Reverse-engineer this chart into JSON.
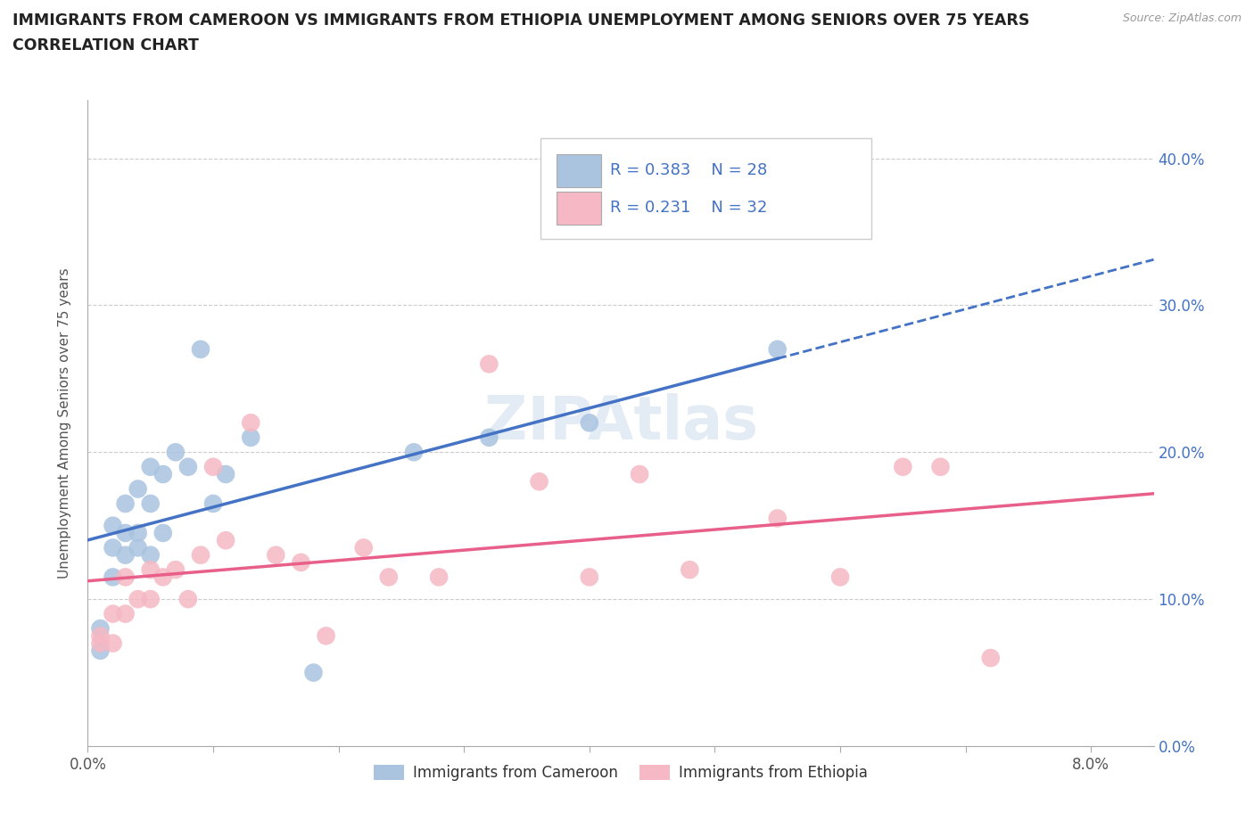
{
  "title_line1": "IMMIGRANTS FROM CAMEROON VS IMMIGRANTS FROM ETHIOPIA UNEMPLOYMENT AMONG SENIORS OVER 75 YEARS",
  "title_line2": "CORRELATION CHART",
  "source": "Source: ZipAtlas.com",
  "ylabel": "Unemployment Among Seniors over 75 years",
  "xlim": [
    0.0,
    0.085
  ],
  "ylim": [
    0.0,
    0.44
  ],
  "xticks": [
    0.0,
    0.01,
    0.02,
    0.03,
    0.04,
    0.05,
    0.06,
    0.07,
    0.08
  ],
  "xticklabels_show": {
    "0.0": "0.0%",
    "0.08": "8.0%"
  },
  "yticks": [
    0.0,
    0.1,
    0.2,
    0.3,
    0.4
  ],
  "yticklabels": [
    "0.0%",
    "10.0%",
    "20.0%",
    "30.0%",
    "40.0%"
  ],
  "cameroon_color": "#aac4e0",
  "ethiopia_color": "#f5b8c4",
  "cameroon_trend_color": "#4472c4",
  "ethiopia_trend_color": "#e8608a",
  "right_axis_color": "#4472c4",
  "watermark_color": "#c8d8ea",
  "cameroon_x": [
    0.001,
    0.001,
    0.002,
    0.002,
    0.002,
    0.003,
    0.003,
    0.003,
    0.004,
    0.004,
    0.004,
    0.005,
    0.005,
    0.005,
    0.006,
    0.006,
    0.007,
    0.008,
    0.009,
    0.01,
    0.011,
    0.013,
    0.018,
    0.026,
    0.032,
    0.04,
    0.055
  ],
  "cameroon_y": [
    0.065,
    0.08,
    0.115,
    0.135,
    0.15,
    0.13,
    0.145,
    0.165,
    0.135,
    0.145,
    0.175,
    0.13,
    0.165,
    0.19,
    0.145,
    0.185,
    0.2,
    0.19,
    0.27,
    0.165,
    0.185,
    0.21,
    0.05,
    0.2,
    0.21,
    0.22,
    0.27
  ],
  "ethiopia_x": [
    0.001,
    0.001,
    0.002,
    0.002,
    0.003,
    0.003,
    0.004,
    0.005,
    0.005,
    0.006,
    0.007,
    0.008,
    0.009,
    0.01,
    0.011,
    0.013,
    0.015,
    0.017,
    0.019,
    0.022,
    0.024,
    0.028,
    0.032,
    0.036,
    0.04,
    0.044,
    0.048,
    0.055,
    0.06,
    0.065,
    0.068,
    0.072
  ],
  "ethiopia_y": [
    0.07,
    0.075,
    0.07,
    0.09,
    0.09,
    0.115,
    0.1,
    0.1,
    0.12,
    0.115,
    0.12,
    0.1,
    0.13,
    0.19,
    0.14,
    0.22,
    0.13,
    0.125,
    0.075,
    0.135,
    0.115,
    0.115,
    0.26,
    0.18,
    0.115,
    0.185,
    0.12,
    0.155,
    0.115,
    0.19,
    0.19,
    0.06
  ],
  "background_color": "#ffffff",
  "grid_color": "#cccccc"
}
